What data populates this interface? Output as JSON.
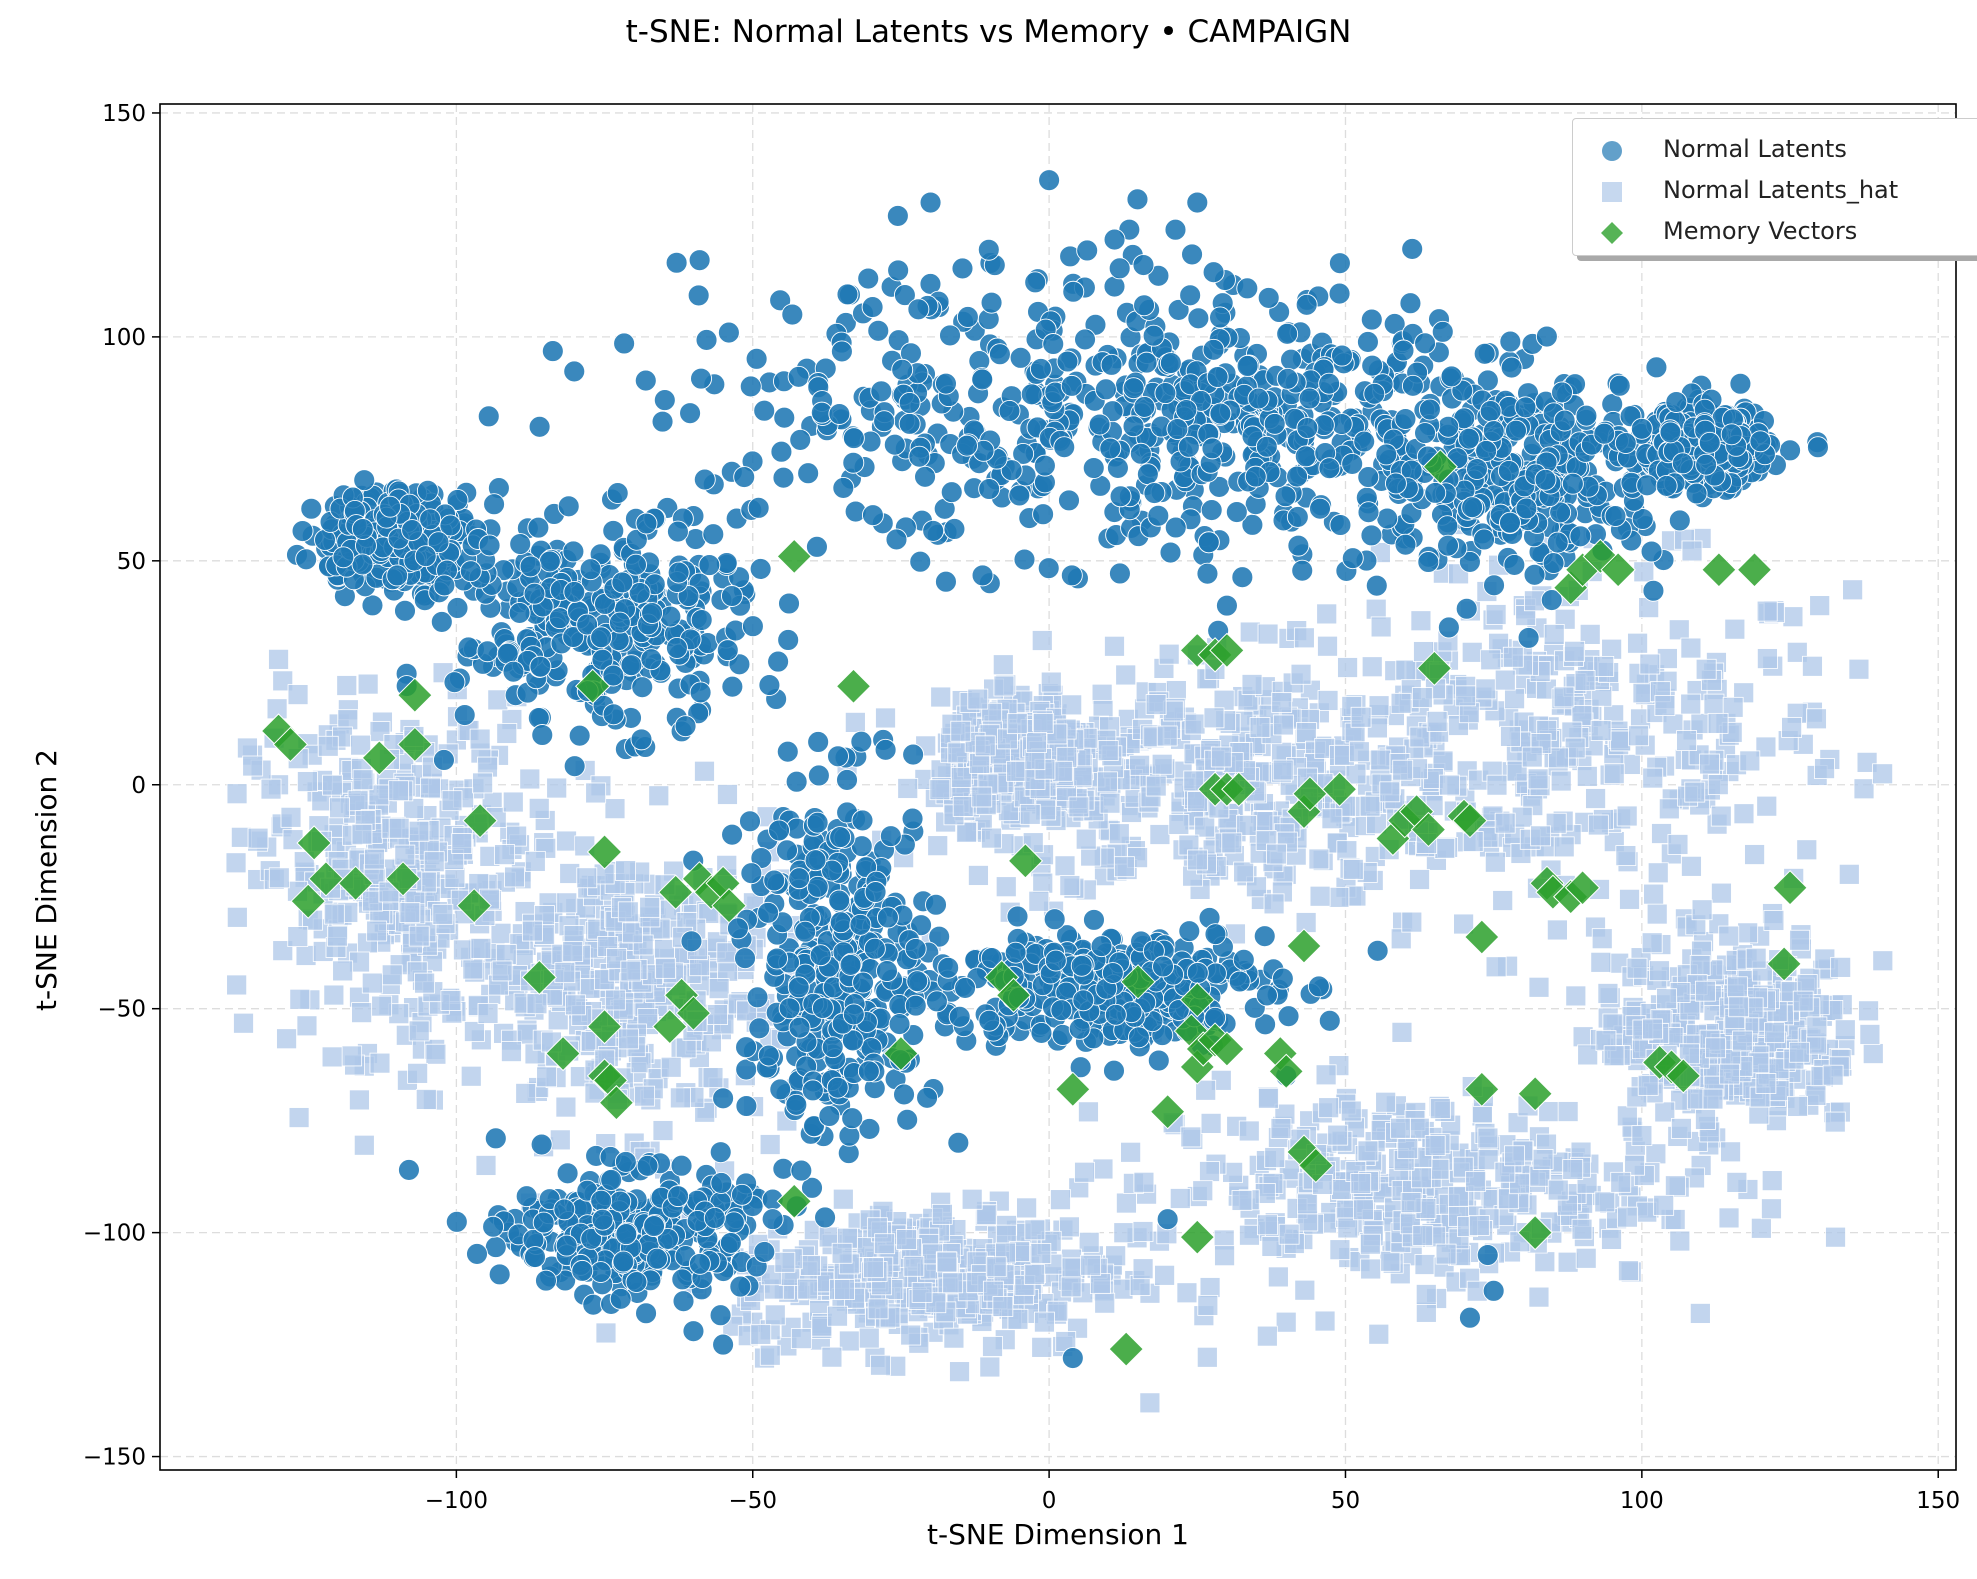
{
  "chart_data": {
    "type": "scatter",
    "title": "t-SNE: Normal Latents vs Memory • CAMPAIGN",
    "xlabel": "t-SNE Dimension 1",
    "ylabel": "t-SNE Dimension 2",
    "xlim": [
      -150,
      153
    ],
    "ylim": [
      -153,
      152
    ],
    "xticks": [
      -100,
      -50,
      0,
      50,
      100,
      150
    ],
    "yticks": [
      -150,
      -100,
      -50,
      0,
      50,
      100,
      150
    ],
    "xtick_labels": [
      "−100",
      "−50",
      "0",
      "50",
      "100",
      "150"
    ],
    "ytick_labels": [
      "−150",
      "−100",
      "−50",
      "0",
      "50",
      "100",
      "150"
    ],
    "grid": true,
    "legend_position": "top-right",
    "series": [
      {
        "name": "Normal Latents",
        "marker": "circle",
        "color": "#1f77b4",
        "approx_count": 3000,
        "cluster_regions": [
          {
            "center": [
              -10,
              85
            ],
            "spread": [
              55,
              30
            ]
          },
          {
            "center": [
              -75,
              35
            ],
            "spread": [
              22,
              20
            ]
          },
          {
            "center": [
              -110,
              55
            ],
            "spread": [
              12,
              10
            ]
          },
          {
            "center": [
              35,
              80
            ],
            "spread": [
              35,
              25
            ]
          },
          {
            "center": [
              80,
              70
            ],
            "spread": [
              22,
              20
            ]
          },
          {
            "center": [
              110,
              75
            ],
            "spread": [
              10,
              8
            ]
          },
          {
            "center": [
              -35,
              -40
            ],
            "spread": [
              15,
              35
            ]
          },
          {
            "center": [
              10,
              -45
            ],
            "spread": [
              25,
              12
            ]
          },
          {
            "center": [
              -70,
              -100
            ],
            "spread": [
              18,
              12
            ]
          }
        ],
        "sample_points": [
          [
            -108,
            -86
          ],
          [
            -90,
            -102
          ],
          [
            -68,
            -118
          ],
          [
            -60,
            -122
          ],
          [
            -55,
            -125
          ],
          [
            4,
            -128
          ],
          [
            71,
            -119
          ],
          [
            75,
            -113
          ],
          [
            74,
            -105
          ],
          [
            20,
            -97
          ],
          [
            -30,
            -50
          ],
          [
            -35,
            -20
          ],
          [
            -28,
            10
          ],
          [
            -10,
            45
          ],
          [
            10,
            55
          ],
          [
            30,
            40
          ],
          [
            -60,
            60
          ],
          [
            -90,
            20
          ],
          [
            -105,
            45
          ],
          [
            60,
            55
          ],
          [
            95,
            85
          ],
          [
            -20,
            130
          ],
          [
            0,
            135
          ],
          [
            25,
            130
          ],
          [
            -5,
            -55
          ],
          [
            25,
            -55
          ],
          [
            40,
            -65
          ],
          [
            -40,
            -90
          ],
          [
            -55,
            -70
          ],
          [
            -80,
            -95
          ]
        ]
      },
      {
        "name": "Normal Latents_hat",
        "marker": "square",
        "color": "#aec7e8",
        "approx_count": 3000,
        "cluster_regions": [
          {
            "center": [
              85,
              10
            ],
            "spread": [
              45,
              35
            ]
          },
          {
            "center": [
              30,
              0
            ],
            "spread": [
              40,
              25
            ]
          },
          {
            "center": [
              -110,
              -20
            ],
            "spread": [
              22,
              35
            ]
          },
          {
            "center": [
              -70,
              -45
            ],
            "spread": [
              25,
              30
            ]
          },
          {
            "center": [
              -20,
              -110
            ],
            "spread": [
              30,
              15
            ]
          },
          {
            "center": [
              60,
              -90
            ],
            "spread": [
              40,
              20
            ]
          },
          {
            "center": [
              115,
              -55
            ],
            "spread": [
              20,
              20
            ]
          },
          {
            "center": [
              -5,
              5
            ],
            "spread": [
              12,
              12
            ]
          }
        ],
        "sample_points": [
          [
            -137,
            -2
          ],
          [
            -130,
            28
          ],
          [
            -125,
            -30
          ],
          [
            -115,
            -60
          ],
          [
            -95,
            -85
          ],
          [
            -70,
            -80
          ],
          [
            -40,
            -120
          ],
          [
            -10,
            -130
          ],
          [
            17,
            -138
          ],
          [
            40,
            -120
          ],
          [
            80,
            -100
          ],
          [
            110,
            -85
          ],
          [
            130,
            -60
          ],
          [
            135,
            -20
          ],
          [
            138,
            5
          ],
          [
            130,
            40
          ],
          [
            110,
            55
          ],
          [
            80,
            40
          ],
          [
            60,
            20
          ],
          [
            40,
            -20
          ],
          [
            10,
            -10
          ],
          [
            5,
            -90
          ],
          [
            -50,
            -120
          ],
          [
            -100,
            10
          ],
          [
            -130,
            0
          ]
        ]
      },
      {
        "name": "Memory Vectors",
        "marker": "diamond",
        "color": "#2ca02c",
        "points": [
          [
            -43,
            51
          ],
          [
            -33,
            22
          ],
          [
            -77,
            22
          ],
          [
            -107,
            20
          ],
          [
            -130,
            12
          ],
          [
            -128,
            9
          ],
          [
            -113,
            6
          ],
          [
            -107,
            9
          ],
          [
            -96,
            -8
          ],
          [
            -75,
            -15
          ],
          [
            -124,
            -13
          ],
          [
            -122,
            -21
          ],
          [
            -125,
            -26
          ],
          [
            -117,
            -22
          ],
          [
            -109,
            -21
          ],
          [
            -97,
            -27
          ],
          [
            -86,
            -43
          ],
          [
            -82,
            -60
          ],
          [
            -75,
            -54
          ],
          [
            -75,
            -65
          ],
          [
            -74,
            -66
          ],
          [
            -73,
            -71
          ],
          [
            -64,
            -54
          ],
          [
            -62,
            -47
          ],
          [
            -60,
            -51
          ],
          [
            -63,
            -24
          ],
          [
            -59,
            -21
          ],
          [
            -57,
            -24
          ],
          [
            -55,
            -22
          ],
          [
            -54,
            -27
          ],
          [
            -25,
            -60
          ],
          [
            -43,
            -93
          ],
          [
            -4,
            -17
          ],
          [
            -8,
            -43
          ],
          [
            -6,
            -47
          ],
          [
            4,
            -68
          ],
          [
            15,
            -44
          ],
          [
            20,
            -73
          ],
          [
            24,
            -55
          ],
          [
            25,
            -48
          ],
          [
            25,
            -63
          ],
          [
            26,
            -59
          ],
          [
            28,
            -57
          ],
          [
            30,
            -59
          ],
          [
            25,
            -101
          ],
          [
            13,
            -126
          ],
          [
            39,
            -60
          ],
          [
            40,
            -64
          ],
          [
            43,
            -82
          ],
          [
            45,
            -85
          ],
          [
            43,
            -36
          ],
          [
            43,
            -6
          ],
          [
            44,
            -2
          ],
          [
            49,
            -1
          ],
          [
            58,
            -12
          ],
          [
            60,
            -8
          ],
          [
            62,
            -6
          ],
          [
            64,
            -10
          ],
          [
            70,
            -7
          ],
          [
            71,
            -8
          ],
          [
            73,
            -34
          ],
          [
            73,
            -68
          ],
          [
            82,
            -69
          ],
          [
            82,
            -100
          ],
          [
            84,
            -22
          ],
          [
            85,
            -24
          ],
          [
            88,
            -25
          ],
          [
            90,
            -23
          ],
          [
            103,
            -62
          ],
          [
            105,
            -63
          ],
          [
            107,
            -65
          ],
          [
            124,
            -40
          ],
          [
            125,
            -23
          ],
          [
            28,
            -1
          ],
          [
            30,
            -1
          ],
          [
            32,
            -1
          ],
          [
            25,
            30
          ],
          [
            28,
            29
          ],
          [
            30,
            30
          ],
          [
            65,
            26
          ],
          [
            66,
            71
          ],
          [
            88,
            44
          ],
          [
            90,
            48
          ],
          [
            93,
            51
          ],
          [
            96,
            48
          ],
          [
            113,
            48
          ],
          [
            119,
            48
          ]
        ]
      }
    ]
  }
}
